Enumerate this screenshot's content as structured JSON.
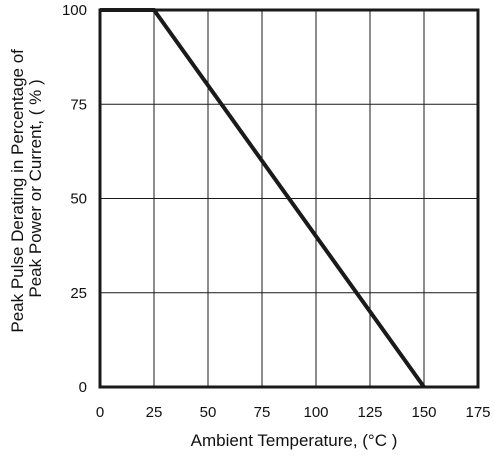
{
  "chart_data": {
    "type": "line",
    "title": "",
    "xlabel": "Ambient Temperature, (°C )",
    "ylabel_lines": [
      "Peak Pulse Derating in Percentage of",
      "Peak Power or Current, ( % )"
    ],
    "xlim": [
      0,
      175
    ],
    "ylim": [
      0,
      100
    ],
    "x_ticks": [
      0,
      25,
      50,
      75,
      100,
      125,
      150,
      175
    ],
    "y_ticks": [
      0,
      25,
      50,
      75,
      100
    ],
    "x_tick_labels": [
      "0",
      "25",
      "50",
      "75",
      "100",
      "125",
      "150",
      "175"
    ],
    "y_tick_labels": [
      "0",
      "25",
      "50",
      "75",
      "100"
    ],
    "grid": true,
    "legend": "none",
    "series": [
      {
        "x": [
          0,
          25,
          150
        ],
        "y": [
          100,
          100,
          0
        ]
      }
    ],
    "colors": {
      "line": "#1a1a1a",
      "grid": "#1a1a1a",
      "frame": "#1a1a1a",
      "text": "#111111"
    }
  }
}
